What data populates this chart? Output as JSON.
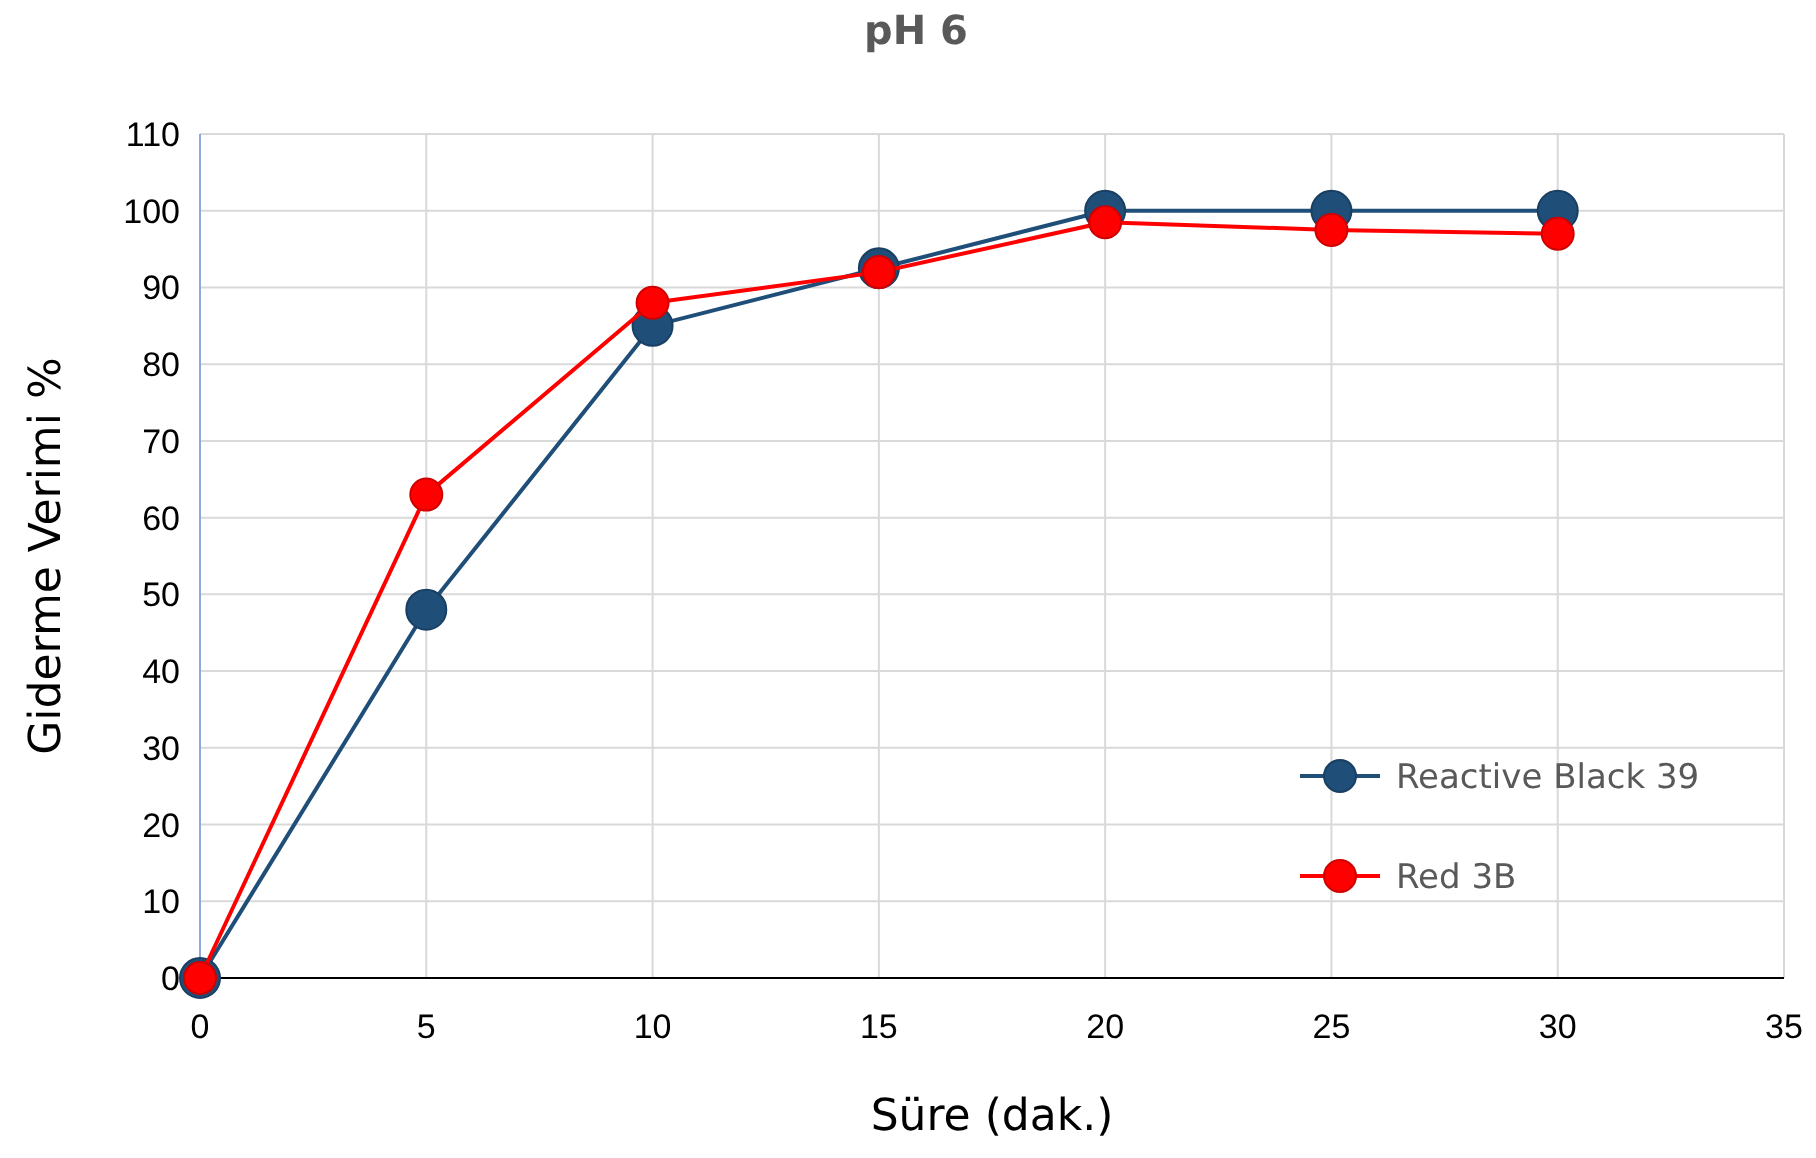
{
  "chart_data": {
    "type": "line",
    "title": "pH 6",
    "xlabel": "Süre (dak.)",
    "ylabel": "Giderme Verimi %",
    "x": [
      0,
      5,
      10,
      15,
      20,
      25,
      30
    ],
    "series": [
      {
        "name": "Reactive Black 39",
        "color": "#1f4e79",
        "values": [
          0,
          48,
          85,
          92.5,
          100,
          100,
          100
        ]
      },
      {
        "name": "Red 3B",
        "color": "#ff0000",
        "values": [
          0,
          63,
          88,
          92,
          98.5,
          97.5,
          97
        ]
      }
    ],
    "xlim": [
      0,
      35
    ],
    "xticks": [
      0,
      5,
      10,
      15,
      20,
      25,
      30,
      35
    ],
    "ylim": [
      0,
      110
    ],
    "yticks": [
      0,
      10,
      20,
      30,
      40,
      50,
      60,
      70,
      80,
      90,
      100,
      110
    ],
    "grid": true,
    "legend": "bottom right",
    "marker": "circle",
    "line_style": "solid"
  }
}
